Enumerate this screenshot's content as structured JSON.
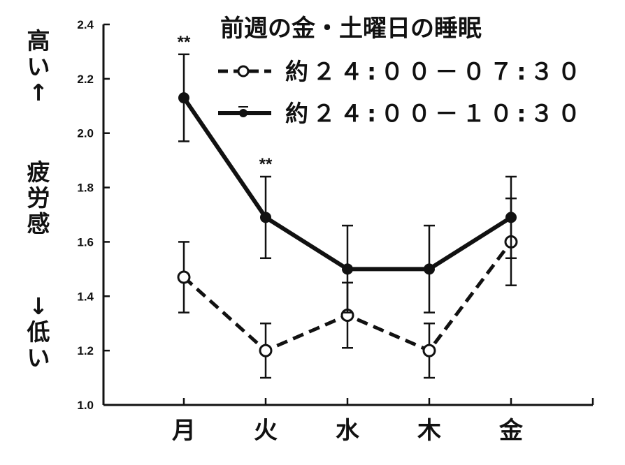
{
  "chart_data": {
    "type": "line",
    "title": "前週の金・土曜日の睡眠",
    "ylabel": {
      "top": "高い↑",
      "middle": "疲労感",
      "bottom": "↓低い"
    },
    "xlabel": "",
    "categories": [
      "月",
      "火",
      "水",
      "木",
      "金"
    ],
    "ylim": [
      1.0,
      2.4
    ],
    "yticks": [
      "1.0",
      "1.2",
      "1.4",
      "1.6",
      "1.8",
      "2.0",
      "2.2",
      "2.4"
    ],
    "grid": false,
    "legend_position": "top-right",
    "series": [
      {
        "name": "約２４:００－０７:３０",
        "style": "dashed",
        "marker": "open-circle",
        "color": "#111111",
        "values": [
          1.47,
          1.2,
          1.33,
          1.2,
          1.6
        ],
        "error": [
          0.13,
          0.1,
          0.12,
          0.1,
          0.16
        ]
      },
      {
        "name": "約２４:００－１０:３０",
        "style": "solid",
        "marker": "filled-circle",
        "color": "#111111",
        "values": [
          2.13,
          1.69,
          1.5,
          1.5,
          1.69
        ],
        "error": [
          0.16,
          0.15,
          0.16,
          0.16,
          0.15
        ]
      }
    ],
    "annotations": [
      {
        "text": "**",
        "category": "月"
      },
      {
        "text": "**",
        "category": "火"
      }
    ]
  }
}
